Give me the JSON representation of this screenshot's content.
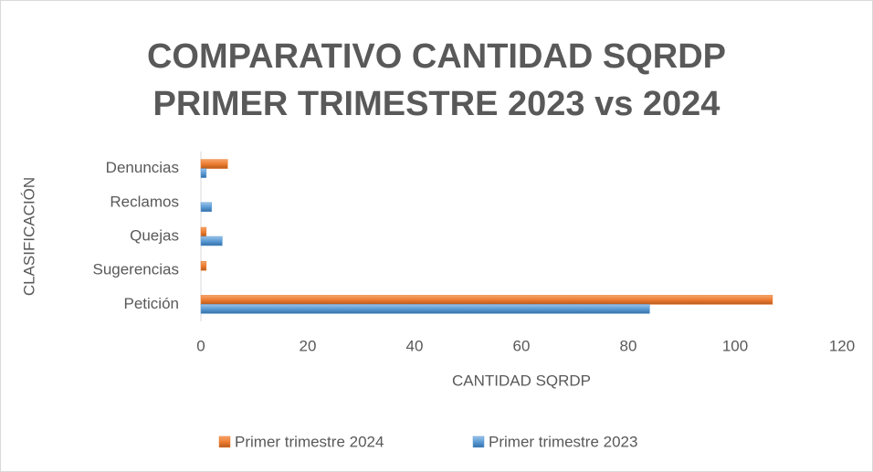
{
  "chart_data": {
    "type": "bar",
    "orientation": "horizontal",
    "title": "COMPARATIVO CANTIDAD SQRDP PRIMER TRIMESTRE 2023 vs 2024",
    "x_label": "CANTIDAD SQRDP",
    "y_label": "CLASIFICACIÓN",
    "categories": [
      "Petición",
      "Sugerencias",
      "Quejas",
      "Reclamos",
      "Denuncias"
    ],
    "series": [
      {
        "name": "Primer trimestre 2024",
        "color": "#ed7d31",
        "values": [
          107,
          1,
          1,
          0,
          5
        ]
      },
      {
        "name": "Primer trimestre 2023",
        "color": "#5b9bd5",
        "values": [
          84,
          0,
          4,
          2,
          1
        ]
      }
    ],
    "xlim": [
      0,
      120
    ],
    "xticks": [
      0,
      20,
      40,
      60,
      80,
      100,
      120
    ],
    "grid": false,
    "legend": "bottom"
  }
}
